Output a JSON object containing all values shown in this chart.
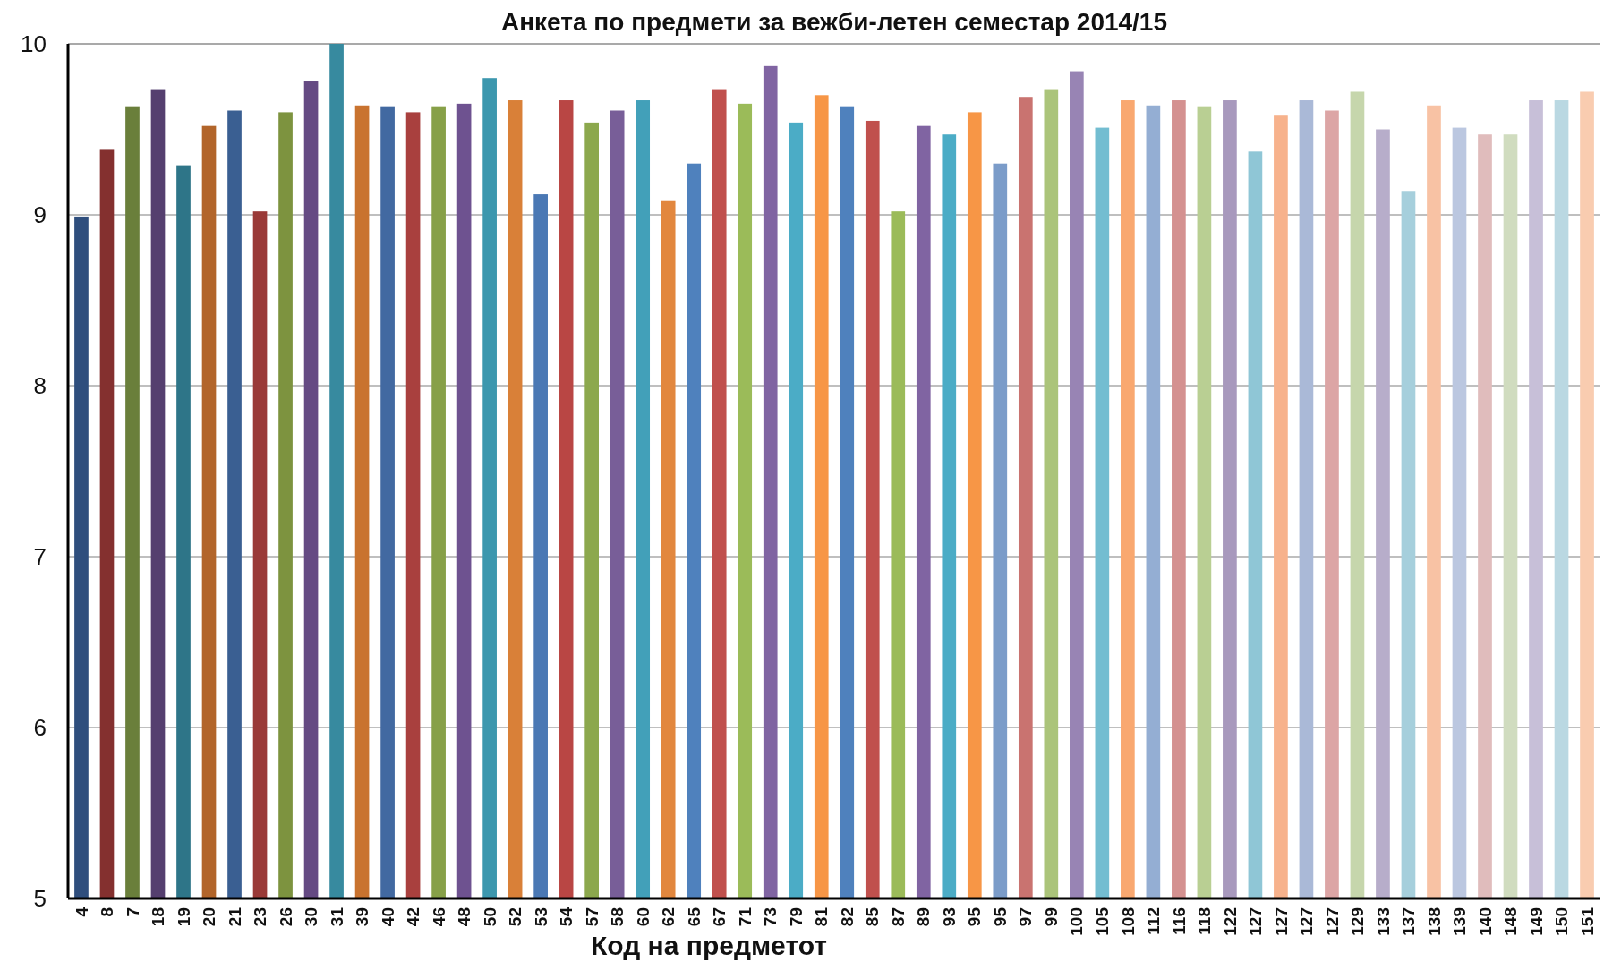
{
  "chart_data": {
    "type": "bar",
    "title": "Анкета по предмети за вежби-летен семестар 2014/15",
    "xlabel": "Код на предметот",
    "categories": [
      "4",
      "8",
      "7",
      "18",
      "19",
      "20",
      "21",
      "23",
      "26",
      "30",
      "31",
      "39",
      "40",
      "42",
      "46",
      "48",
      "50",
      "52",
      "53",
      "54",
      "57",
      "58",
      "60",
      "62",
      "65",
      "67",
      "71",
      "73",
      "79",
      "81",
      "82",
      "85",
      "87",
      "89",
      "93",
      "95",
      "95",
      "97",
      "99",
      "100",
      "105",
      "108",
      "112",
      "116",
      "118",
      "122",
      "127",
      "127",
      "127",
      "127",
      "129",
      "133",
      "137",
      "138",
      "139",
      "140",
      "148",
      "149",
      "150",
      "151"
    ],
    "values": [
      8.99,
      9.38,
      9.63,
      9.73,
      9.29,
      9.52,
      9.61,
      9.02,
      9.6,
      9.78,
      10,
      9.64,
      9.63,
      9.6,
      9.63,
      9.65,
      9.8,
      9.67,
      9.12,
      9.67,
      9.54,
      9.61,
      9.67,
      9.08,
      9.3,
      9.73,
      9.65,
      9.87,
      9.54,
      9.7,
      9.63,
      9.55,
      9.02,
      9.52,
      9.47,
      9.6,
      9.3,
      9.69,
      9.73,
      9.84,
      9.51,
      9.67,
      9.64,
      9.67,
      9.63,
      9.67,
      9.37,
      9.58,
      9.67,
      9.61,
      9.72,
      9.5,
      9.14,
      9.64,
      9.51,
      9.47,
      9.47,
      9.67,
      9.67,
      9.72
    ],
    "colors": [
      "#2f4e7d",
      "#84302f",
      "#6a7f3b",
      "#553f6f",
      "#2e7588",
      "#b2652a",
      "#3a5f92",
      "#9a3a38",
      "#7d933f",
      "#654a83",
      "#378a9f",
      "#c9732f",
      "#4269a1",
      "#a9403e",
      "#87a048",
      "#6e5290",
      "#3c97ae",
      "#d98038",
      "#4a78b4",
      "#b94644",
      "#8ca84d",
      "#785e98",
      "#42a0b9",
      "#e2873e",
      "#4f81bd",
      "#c0504d",
      "#9bbb59",
      "#8064a2",
      "#4bacc6",
      "#f79646",
      "#4f81bd",
      "#c0504d",
      "#9bbb59",
      "#8064a2",
      "#4bacc6",
      "#f79646",
      "#7b9cc9",
      "#c97370",
      "#abc47a",
      "#9884b4",
      "#73bdd1",
      "#f9a870",
      "#94aed3",
      "#d49190",
      "#b9cf93",
      "#a899bd",
      "#8fc6d6",
      "#f7b28c",
      "#aab9d7",
      "#dca5a5",
      "#c6d6ac",
      "#b7adca",
      "#a6cfdc",
      "#f8c2a4",
      "#bbc7e0",
      "#e0bcbc",
      "#d0dcbf",
      "#c7bfd8",
      "#bad8e2",
      "#f9ccb0"
    ],
    "ylim": [
      5,
      10
    ],
    "yticks": [
      5,
      6,
      7,
      8,
      9,
      10
    ],
    "grid": "y"
  }
}
